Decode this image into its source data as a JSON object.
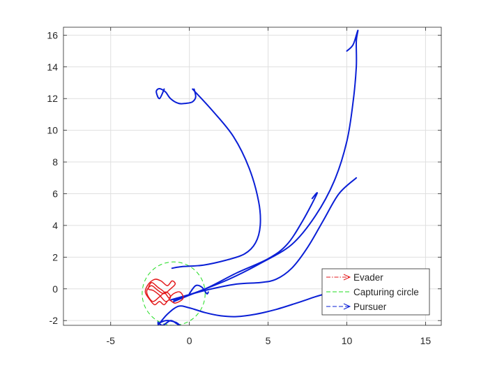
{
  "chart_data": {
    "type": "line",
    "title": "",
    "xlabel": "",
    "ylabel": "",
    "xlim": [
      -8,
      16
    ],
    "ylim": [
      -2.3,
      16.5
    ],
    "grid": true,
    "legend_position": "bottom-right",
    "x_ticks": [
      -5,
      0,
      5,
      10,
      15
    ],
    "y_ticks": [
      -2,
      0,
      2,
      4,
      6,
      8,
      10,
      12,
      14,
      16
    ],
    "legend": [
      {
        "label": "Evader",
        "color": "#e31a1c",
        "style": "dash-dot",
        "marker": "arrow"
      },
      {
        "label": "Capturing circle",
        "color": "#22dd22",
        "style": "dashed",
        "marker": ""
      },
      {
        "label": "Pursuer",
        "color": "#0a1fd6",
        "style": "dashed",
        "marker": "arrow"
      }
    ],
    "capturing_circle": {
      "center": [
        -1,
        -0.3
      ],
      "radius": 2.0,
      "color": "#22dd22"
    },
    "evader_trajectory": {
      "color": "#e31a1c",
      "x": [
        -1.3,
        -1.0,
        -0.6,
        -0.4,
        -0.9,
        -1.3,
        -1.6,
        -1.9,
        -2.2,
        -2.5,
        -2.8,
        -2.6,
        -2.2,
        -1.8,
        -1.4,
        -1.1,
        -0.9,
        -1.2,
        -1.6,
        -2.0,
        -2.4,
        -2.7,
        -2.6,
        -2.3,
        -1.9,
        -1.5,
        -1.2,
        -1.5,
        -1.9,
        -2.3,
        -2.6,
        -2.4,
        -2.0,
        -1.6,
        -1.3
      ],
      "y": [
        -0.6,
        -0.3,
        -0.2,
        -0.6,
        -0.9,
        -0.7,
        -1.0,
        -0.8,
        -1.0,
        -0.7,
        -0.2,
        0.3,
        0.6,
        0.5,
        0.2,
        0.5,
        0.3,
        0.0,
        -0.3,
        -0.1,
        0.2,
        -0.1,
        -0.5,
        -0.8,
        -0.5,
        -0.2,
        -0.5,
        -0.8,
        -0.4,
        -0.1,
        0.0,
        0.4,
        0.1,
        -0.2,
        -0.6
      ]
    },
    "pursuer_trajectories": [
      {
        "x": [
          0.2,
          1.5,
          2.8,
          3.8,
          4.4,
          4.5,
          4.2,
          3.5,
          2.3,
          0.9,
          -0.5,
          -1.1
        ],
        "y": [
          12.6,
          11.2,
          9.6,
          7.6,
          5.5,
          4.0,
          2.9,
          2.2,
          1.8,
          1.5,
          1.4,
          1.3
        ]
      },
      {
        "x": [
          0.3,
          0.4,
          0.2,
          -0.2,
          -0.7,
          -1.2,
          -1.5,
          -1.8,
          -2.0,
          -2.1,
          -1.9,
          -1.6
        ],
        "y": [
          12.6,
          12.1,
          11.8,
          11.7,
          11.7,
          12.0,
          12.4,
          12.6,
          12.6,
          12.4,
          12.0,
          12.6
        ]
      },
      {
        "x": [
          -1.0,
          0.5,
          2.5,
          4.5,
          6.5,
          8.0,
          9.2,
          10.0,
          10.4,
          10.6,
          10.6,
          10.7,
          10.4,
          10.0
        ],
        "y": [
          -0.8,
          -0.2,
          0.6,
          1.6,
          2.8,
          4.6,
          6.8,
          9.3,
          11.8,
          14.0,
          15.6,
          16.3,
          15.4,
          15.0
        ]
      },
      {
        "x": [
          -1.0,
          1.0,
          3.0,
          5.0,
          6.2,
          7.2,
          8.1,
          7.8
        ],
        "y": [
          -0.7,
          0.0,
          1.0,
          1.9,
          2.8,
          4.3,
          6.0,
          5.7
        ]
      },
      {
        "x": [
          -1.2,
          1.0,
          3.0,
          4.5,
          5.5,
          6.5,
          7.5,
          8.5,
          9.5,
          10.6
        ],
        "y": [
          -0.7,
          -0.1,
          0.3,
          0.4,
          0.6,
          1.3,
          2.6,
          4.3,
          6.0,
          7.0
        ]
      },
      {
        "x": [
          -2.0,
          -1.4,
          -0.7,
          0.0,
          1.0,
          2.0,
          3.0,
          4.2,
          5.5,
          6.8,
          8.0,
          8.7
        ],
        "y": [
          -2.3,
          -1.6,
          -1.1,
          -1.2,
          -1.5,
          -1.7,
          -1.75,
          -1.6,
          -1.3,
          -0.9,
          -0.5,
          -0.3
        ]
      },
      {
        "x": [
          -2.0,
          -1.7,
          -1.2,
          -0.8,
          -0.6,
          -0.9,
          -1.5,
          -2.0
        ],
        "y": [
          -2.1,
          -2.3,
          -2.0,
          -2.2,
          -2.3,
          -2.1,
          -2.0,
          -2.2
        ]
      },
      {
        "x": [
          0.0,
          0.4,
          0.8,
          1.1,
          1.2
        ],
        "y": [
          -0.3,
          0.2,
          0.1,
          -0.3,
          -0.2
        ]
      }
    ],
    "pursuer_color": "#0a1fd6"
  }
}
